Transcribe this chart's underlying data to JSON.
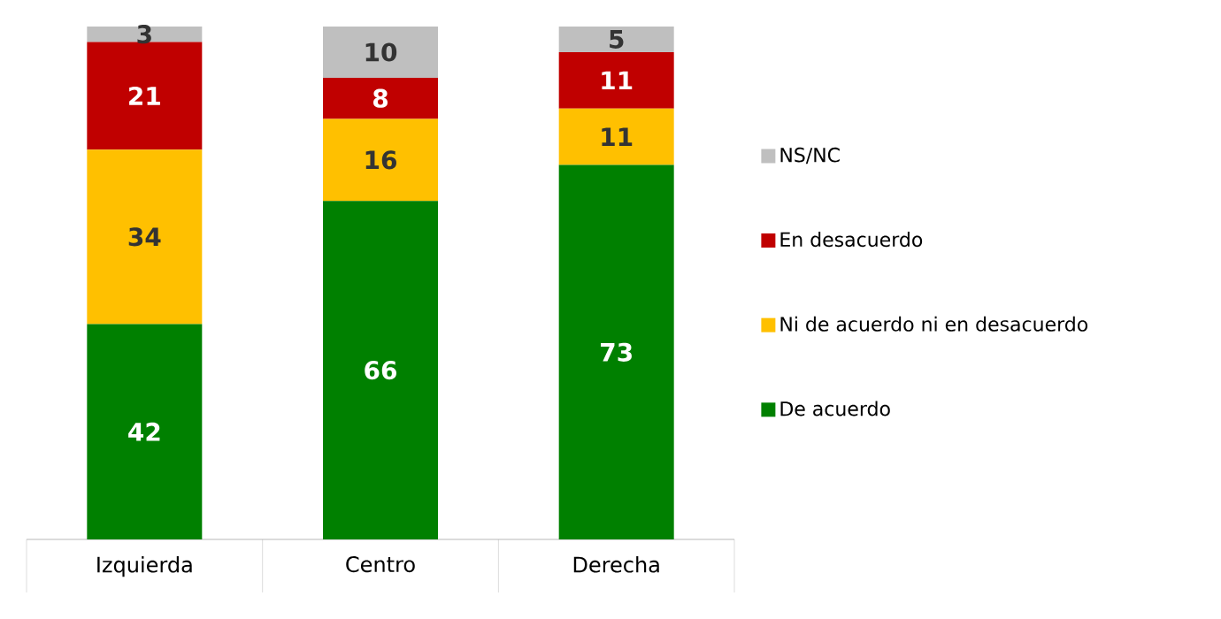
{
  "chart_data": {
    "type": "bar",
    "stacked": true,
    "data_labels": true,
    "legend": "right",
    "categories": [
      "Izquierda",
      "Centro",
      "Derecha"
    ],
    "series": [
      {
        "name": "De acuerdo",
        "color": "#008000",
        "values": [
          42,
          66,
          73
        ]
      },
      {
        "name": "Ni de acuerdo ni en desacuerdo",
        "color": "#ffc000",
        "values": [
          34,
          16,
          11
        ]
      },
      {
        "name": "En desacuerdo",
        "color": "#c00000",
        "values": [
          21,
          8,
          11
        ]
      },
      {
        "name": "NS/NC",
        "color": "#bfbfbf",
        "values": [
          3,
          10,
          5
        ]
      }
    ]
  }
}
